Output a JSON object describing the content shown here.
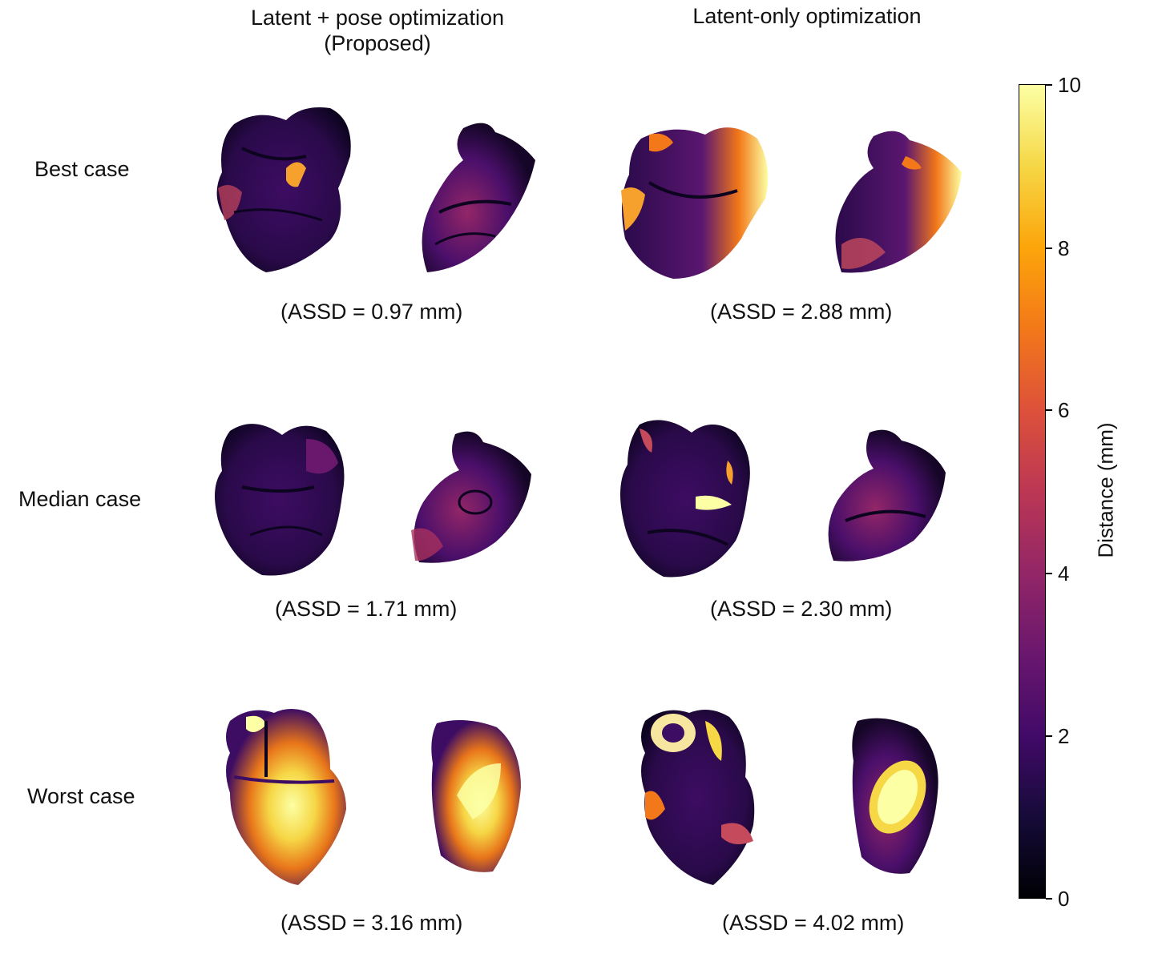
{
  "columns": {
    "left": {
      "title_line1": "Latent + pose optimization",
      "title_line2": "(Proposed)"
    },
    "right": {
      "title": "Latent-only optimization"
    }
  },
  "rows": [
    {
      "label": "Best case",
      "left_caption": "(ASSD = 0.97 mm)",
      "right_caption": "(ASSD = 2.88 mm)"
    },
    {
      "label": "Median case",
      "left_caption": "(ASSD = 1.71 mm)",
      "right_caption": "(ASSD = 2.30 mm)"
    },
    {
      "label": "Worst case",
      "left_caption": "(ASSD = 3.16 mm)",
      "right_caption": "(ASSD = 4.02 mm)"
    }
  ],
  "colorbar": {
    "label": "Distance (mm)",
    "min": 0,
    "max": 10,
    "ticks": [
      "0",
      "2",
      "4",
      "6",
      "8",
      "10"
    ],
    "colormap": "inferno"
  }
}
